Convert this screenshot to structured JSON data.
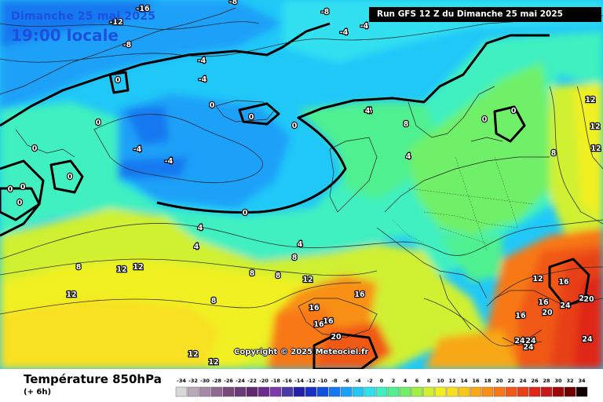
{
  "overlay": {
    "date_text": "Dimanche 25 mai 2025",
    "time_text": "19:00 locale",
    "run_text": "Run GFS 12 Z du Dimanche 25 mai 2025",
    "copyright_text": "Copyright © 2025 Meteociel.fr"
  },
  "footer": {
    "parameter_title": "Température 850hPa",
    "forecast_step": "(+ 6h)"
  },
  "legend": {
    "ticks": [
      "-34",
      "-32",
      "-30",
      "-28",
      "-26",
      "-24",
      "-22",
      "-20",
      "-18",
      "-16",
      "-14",
      "-12",
      "-10",
      "-8",
      "-6",
      "-4",
      "-2",
      "0",
      "2",
      "4",
      "6",
      "8",
      "10",
      "12",
      "14",
      "16",
      "18",
      "20",
      "22",
      "24",
      "26",
      "28",
      "30",
      "32",
      "34"
    ],
    "colors": [
      "#d8d8d8",
      "#b8a8b8",
      "#a888a8",
      "#906890",
      "#784878",
      "#6a3a7a",
      "#602870",
      "#6c2a8c",
      "#7c3aaa",
      "#4a3aa8",
      "#2020a8",
      "#1830c8",
      "#1050e0",
      "#1478f0",
      "#1aa0f8",
      "#20c8f8",
      "#30e0f0",
      "#40f0c0",
      "#50f090",
      "#70f068",
      "#a0f048",
      "#d0f030",
      "#f0f020",
      "#f8e020",
      "#f8c818",
      "#f8a818",
      "#f89018",
      "#f87818",
      "#f05818",
      "#e84018",
      "#e02818",
      "#c81818",
      "#a00808",
      "#700000",
      "#100000"
    ]
  },
  "isotherm_labels": [
    "-16",
    "-12",
    "-8",
    "-8",
    "-8",
    "-4",
    "-4",
    "-4",
    "-4",
    "-4",
    "-4",
    "-4",
    "0",
    "0",
    "0",
    "0",
    "0",
    "0",
    "0",
    "0",
    "0",
    "0",
    "0",
    "0",
    "0",
    "4",
    "4",
    "4",
    "4",
    "4",
    "8",
    "8",
    "8",
    "8",
    "8",
    "8",
    "8",
    "12",
    "12",
    "12",
    "12",
    "12",
    "12",
    "12",
    "12",
    "12",
    "12",
    "16",
    "16",
    "16",
    "16",
    "16",
    "16",
    "16",
    "20",
    "20",
    "20",
    "20",
    "24",
    "24",
    "24",
    "24",
    "24"
  ]
}
